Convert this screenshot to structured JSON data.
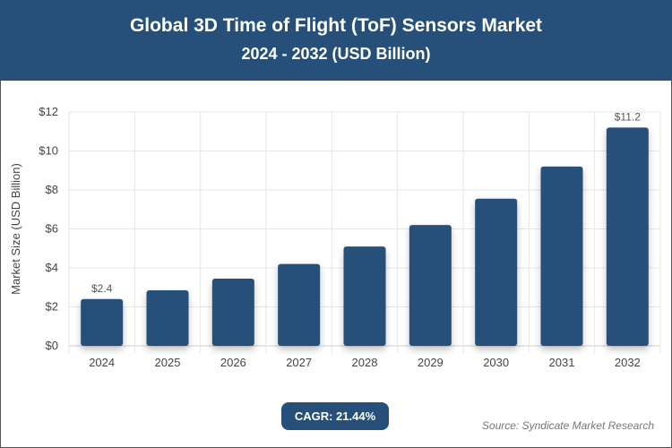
{
  "header": {
    "title": "Global 3D Time of Flight (ToF) Sensors Market",
    "subtitle": "2024 - 2032 (USD Billion)"
  },
  "footer": {
    "cagr": "CAGR: 21.44%",
    "source": "Source: Syndicate Market Research"
  },
  "colors": {
    "bar": "#26507a",
    "header": "#26507a"
  },
  "chart_data": {
    "type": "bar",
    "title": "Global 3D Time of Flight (ToF) Sensors Market",
    "subtitle": "2024 - 2032 (USD Billion)",
    "ylabel": "Market Size (USD Billion)",
    "xlabel": "",
    "categories": [
      "2024",
      "2025",
      "2026",
      "2027",
      "2028",
      "2029",
      "2030",
      "2031",
      "2032"
    ],
    "values": [
      2.4,
      2.85,
      3.45,
      4.2,
      5.1,
      6.2,
      7.55,
      9.2,
      11.2
    ],
    "data_labels": {
      "0": "$2.4",
      "8": "$11.2"
    },
    "ylim": [
      0,
      12
    ],
    "yticks": [
      "$0",
      "$2",
      "$4",
      "$6",
      "$8",
      "$10",
      "$12"
    ],
    "grid": true
  }
}
